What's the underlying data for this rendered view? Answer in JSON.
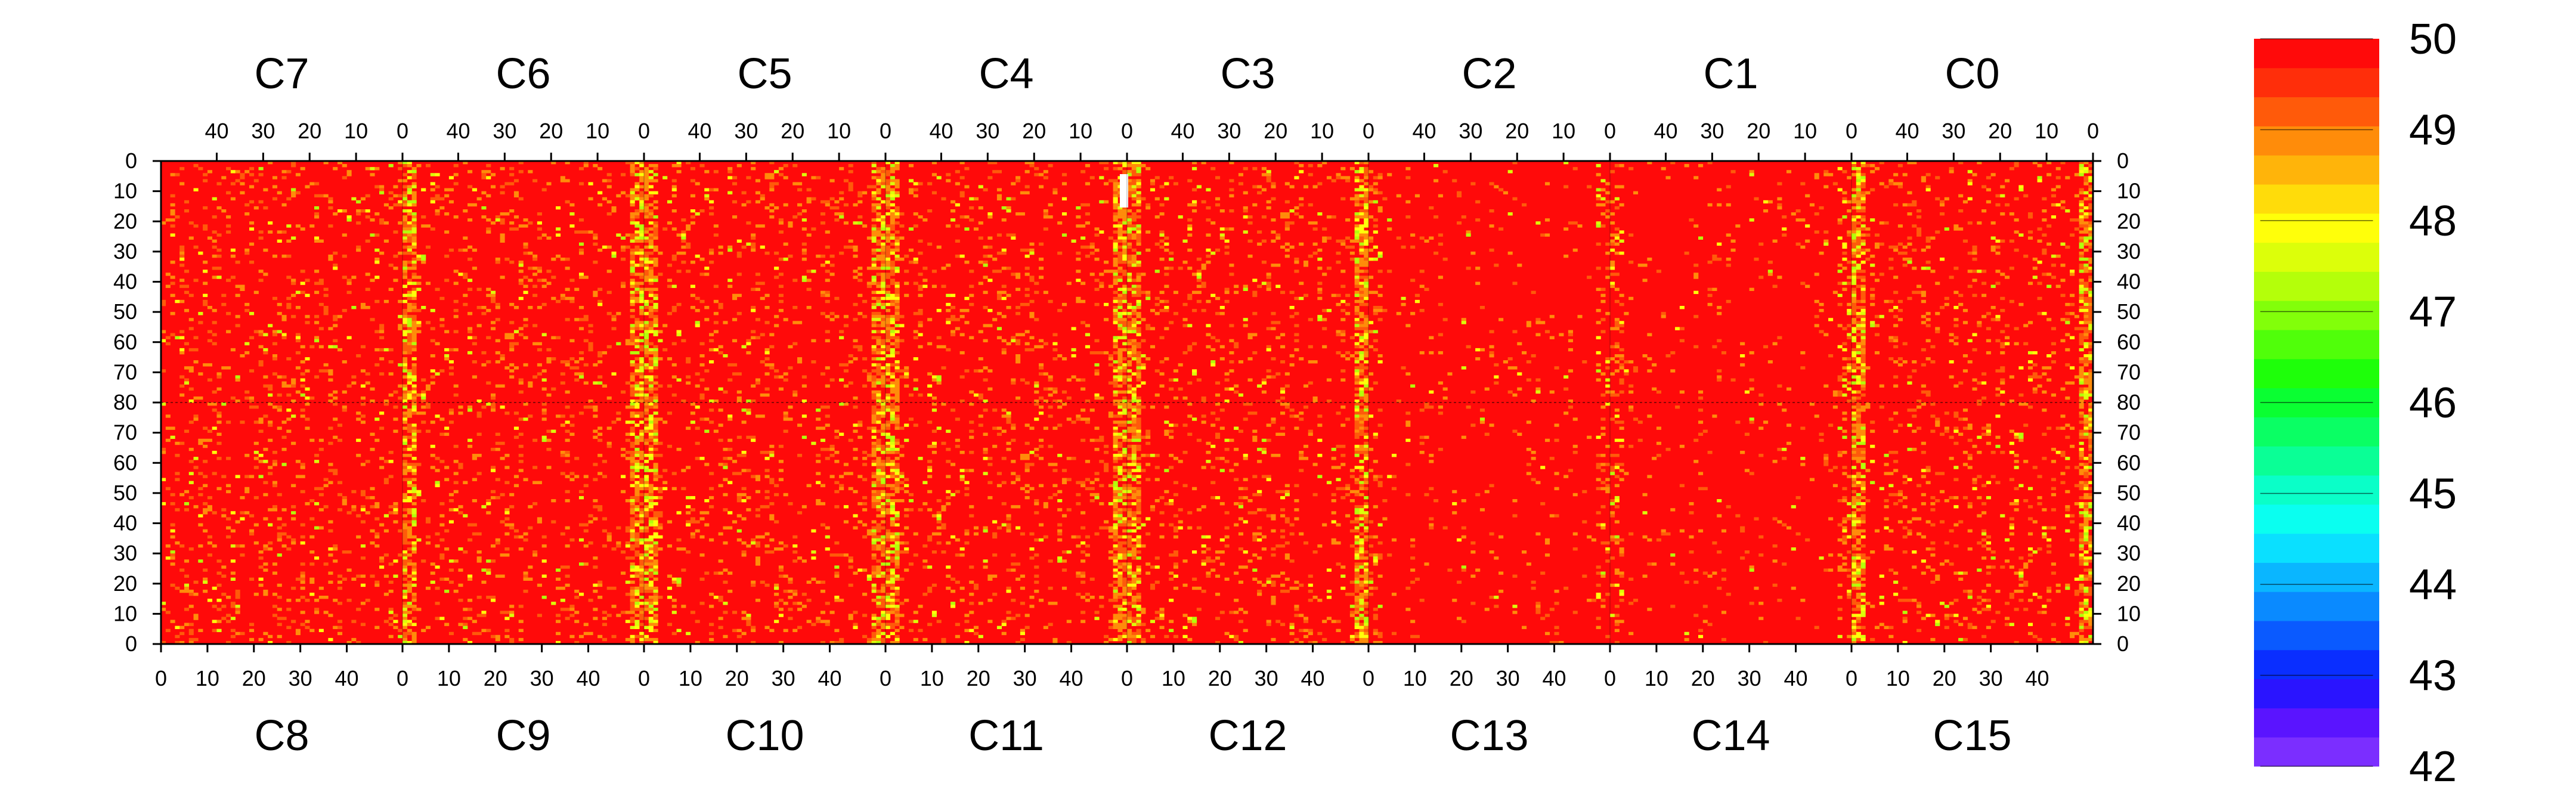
{
  "chart_data": {
    "type": "heatmap",
    "title": "",
    "top_chips": [
      "C7",
      "C6",
      "C5",
      "C4",
      "C3",
      "C2",
      "C1",
      "C0"
    ],
    "bottom_chips": [
      "C8",
      "C9",
      "C10",
      "C11",
      "C12",
      "C13",
      "C14",
      "C15"
    ],
    "x_ticks_top": [
      "40",
      "30",
      "20",
      "10",
      "0"
    ],
    "x_ticks_bottom": [
      "0",
      "10",
      "20",
      "30",
      "40"
    ],
    "x_range_per_chip": [
      0,
      52
    ],
    "y_ticks_upper": [
      "0",
      "10",
      "20",
      "30",
      "40",
      "50",
      "60",
      "70",
      "80"
    ],
    "y_ticks_lower": [
      "70",
      "60",
      "50",
      "40",
      "30",
      "20",
      "10",
      "0"
    ],
    "y_range_per_half": [
      0,
      80
    ],
    "zlim": [
      42,
      50
    ],
    "colorbar_labels": [
      "50",
      "49",
      "48",
      "47",
      "46",
      "45",
      "44",
      "43",
      "42"
    ],
    "colorscale": [
      "#7b2eff",
      "#5a14ff",
      "#2a14ff",
      "#0a2eff",
      "#0a5aff",
      "#0a8aff",
      "#0ab6ff",
      "#0ae0ff",
      "#0afff0",
      "#0affc8",
      "#0aff96",
      "#0aff64",
      "#0aff32",
      "#1eff0a",
      "#50ff0a",
      "#82ff0a",
      "#b4ff0a",
      "#dcff0a",
      "#ffff0a",
      "#ffdc0a",
      "#ffb40a",
      "#ff8c0a",
      "#ff5a0a",
      "#ff2e0a",
      "#ff0a0a"
    ],
    "dominant_value": 50,
    "notes_hot_columns": "lower-valued (yellow/green) pixels concentrate along the chip boundaries"
  }
}
